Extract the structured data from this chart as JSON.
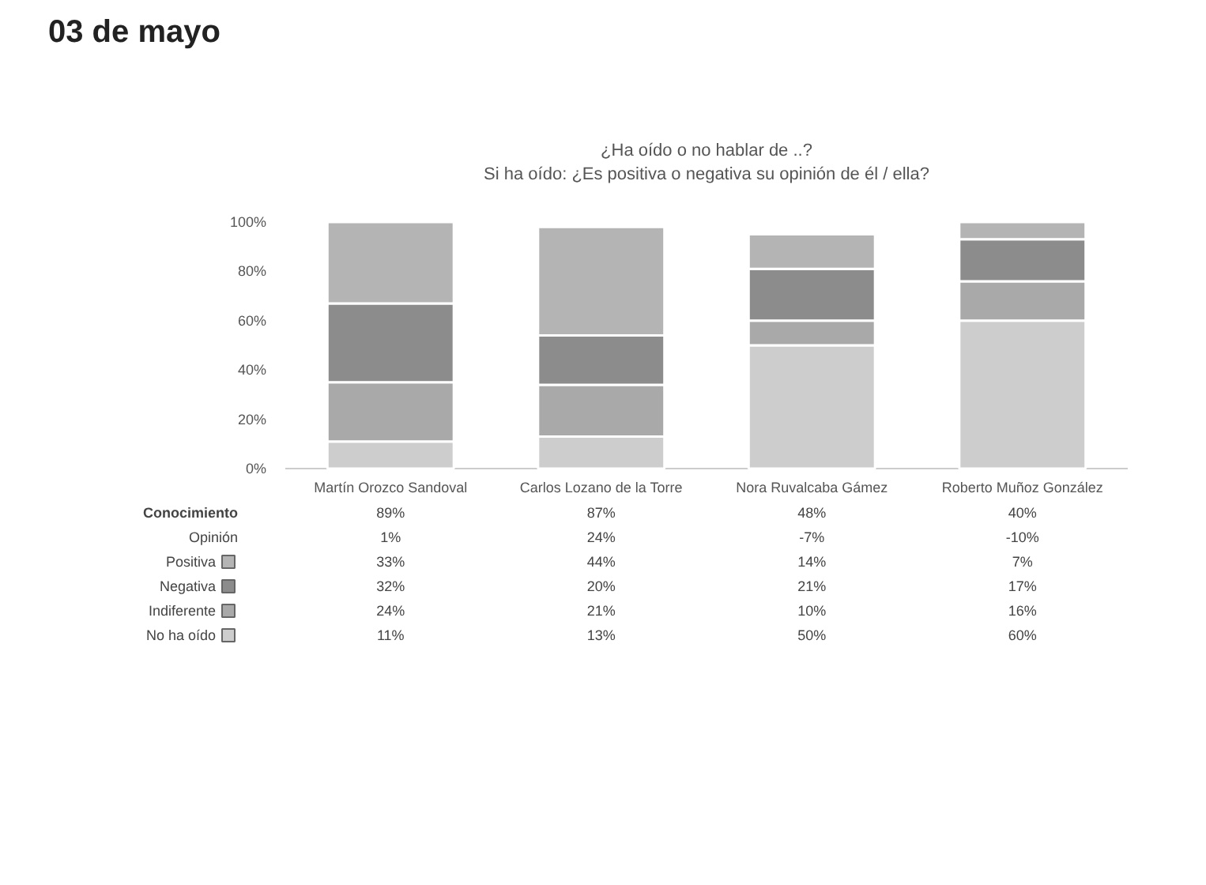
{
  "chart_data": {
    "type": "bar",
    "stacked": true,
    "title": "03 de mayo",
    "subtitle": "¿Ha oído o no hablar de ..?\nSi ha oído: ¿Es positiva o negativa su opinión de él / ella?",
    "categories": [
      "Martín Orozco Sandoval",
      "Carlos Lozano de la Torre",
      "Nora Ruvalcaba Gámez",
      "Roberto Muñoz González"
    ],
    "series": [
      {
        "name": "No ha oído",
        "color": "#cdcdcd",
        "values": [
          11,
          13,
          50,
          60
        ],
        "value_labels": [
          "11%",
          "13%",
          "50%",
          "60%"
        ]
      },
      {
        "name": "Indiferente",
        "color": "#a9a9a9",
        "values": [
          24,
          21,
          10,
          16
        ],
        "value_labels": [
          "24%",
          "21%",
          "10%",
          "16%"
        ]
      },
      {
        "name": "Negativa",
        "color": "#8c8c8c",
        "values": [
          32,
          20,
          21,
          17
        ],
        "value_labels": [
          "32%",
          "20%",
          "21%",
          "17%"
        ]
      },
      {
        "name": "Positiva",
        "color": "#b4b4b4",
        "values": [
          33,
          44,
          14,
          7
        ],
        "value_labels": [
          "33%",
          "44%",
          "14%",
          "7%"
        ]
      }
    ],
    "ylim": [
      0,
      100
    ],
    "yticks": [
      {
        "value": 0,
        "label": "0%"
      },
      {
        "value": 20,
        "label": "20%"
      },
      {
        "value": 40,
        "label": "40%"
      },
      {
        "value": 60,
        "label": "60%"
      },
      {
        "value": 80,
        "label": "80%"
      },
      {
        "value": 100,
        "label": "100%"
      }
    ],
    "legend": "bottom left",
    "annotations": [
      "Conocimiento",
      "89%",
      "87%",
      "48%",
      "40%",
      "Opinión",
      "1%",
      "24%",
      "-7%",
      "-10%"
    ]
  }
}
